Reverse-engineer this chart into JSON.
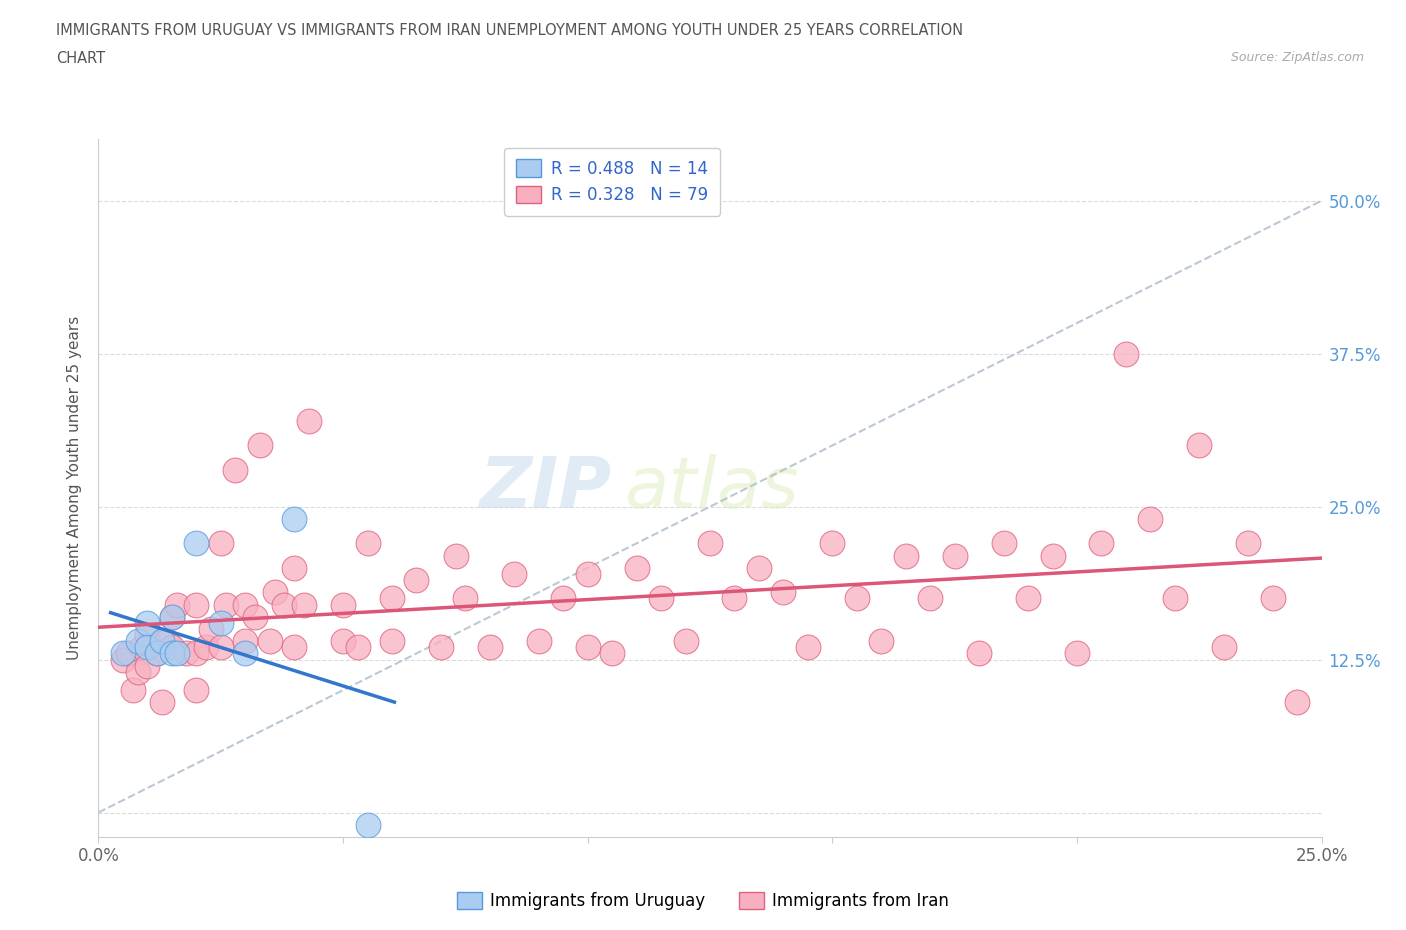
{
  "title_line1": "IMMIGRANTS FROM URUGUAY VS IMMIGRANTS FROM IRAN UNEMPLOYMENT AMONG YOUTH UNDER 25 YEARS CORRELATION",
  "title_line2": "CHART",
  "source_text": "Source: ZipAtlas.com",
  "ylabel": "Unemployment Among Youth under 25 years",
  "r_uruguay": 0.488,
  "n_uruguay": 14,
  "r_iran": 0.328,
  "n_iran": 79,
  "color_uruguay_fill": "#aaccf0",
  "color_uruguay_edge": "#5599dd",
  "color_iran_fill": "#f8b0c0",
  "color_iran_edge": "#e06080",
  "color_line_uruguay": "#3377cc",
  "color_line_iran": "#dd5577",
  "color_line_dashed": "#aabbcc",
  "xlim": [
    0.0,
    0.25
  ],
  "ylim": [
    -0.02,
    0.55
  ],
  "yticks": [
    0.0,
    0.125,
    0.25,
    0.375,
    0.5
  ],
  "watermark_zip": "ZIP",
  "watermark_atlas": "atlas",
  "uruguay_x": [
    0.005,
    0.008,
    0.01,
    0.01,
    0.012,
    0.013,
    0.015,
    0.015,
    0.016,
    0.02,
    0.025,
    0.03,
    0.04,
    0.055
  ],
  "uruguay_y": [
    0.13,
    0.14,
    0.135,
    0.155,
    0.13,
    0.14,
    0.13,
    0.16,
    0.13,
    0.22,
    0.155,
    0.13,
    0.24,
    -0.01
  ],
  "iran_x": [
    0.005,
    0.006,
    0.007,
    0.008,
    0.009,
    0.01,
    0.01,
    0.012,
    0.013,
    0.014,
    0.015,
    0.015,
    0.016,
    0.018,
    0.02,
    0.02,
    0.02,
    0.022,
    0.023,
    0.025,
    0.025,
    0.026,
    0.028,
    0.03,
    0.03,
    0.032,
    0.033,
    0.035,
    0.036,
    0.038,
    0.04,
    0.04,
    0.042,
    0.043,
    0.05,
    0.05,
    0.053,
    0.055,
    0.06,
    0.06,
    0.065,
    0.07,
    0.073,
    0.075,
    0.08,
    0.085,
    0.09,
    0.095,
    0.1,
    0.1,
    0.105,
    0.11,
    0.115,
    0.12,
    0.125,
    0.13,
    0.135,
    0.14,
    0.145,
    0.15,
    0.155,
    0.16,
    0.165,
    0.17,
    0.175,
    0.18,
    0.185,
    0.19,
    0.195,
    0.2,
    0.205,
    0.21,
    0.215,
    0.22,
    0.225,
    0.23,
    0.235,
    0.24,
    0.245
  ],
  "iran_y": [
    0.125,
    0.13,
    0.1,
    0.115,
    0.135,
    0.12,
    0.145,
    0.13,
    0.09,
    0.14,
    0.135,
    0.16,
    0.17,
    0.13,
    0.1,
    0.13,
    0.17,
    0.135,
    0.15,
    0.135,
    0.22,
    0.17,
    0.28,
    0.14,
    0.17,
    0.16,
    0.3,
    0.14,
    0.18,
    0.17,
    0.135,
    0.2,
    0.17,
    0.32,
    0.14,
    0.17,
    0.135,
    0.22,
    0.14,
    0.175,
    0.19,
    0.135,
    0.21,
    0.175,
    0.135,
    0.195,
    0.14,
    0.175,
    0.135,
    0.195,
    0.13,
    0.2,
    0.175,
    0.14,
    0.22,
    0.175,
    0.2,
    0.18,
    0.135,
    0.22,
    0.175,
    0.14,
    0.21,
    0.175,
    0.21,
    0.13,
    0.22,
    0.175,
    0.21,
    0.13,
    0.22,
    0.375,
    0.24,
    0.175,
    0.3,
    0.135,
    0.22,
    0.175,
    0.09
  ]
}
